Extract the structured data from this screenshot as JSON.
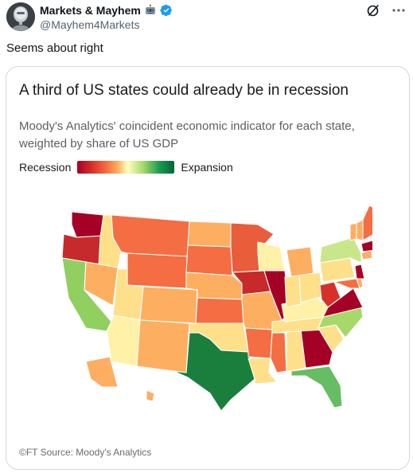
{
  "tweet": {
    "display_name": "Markets & Mayhem",
    "handle": "@Mayhem4Markets",
    "text": "Seems about right"
  },
  "card": {
    "title": "A third of US states could already be in recession",
    "subtitle": "Moody's Analytics' coincident economic indicator for each state, weighted by share of US GDP",
    "legend_low": "Recession",
    "legend_high": "Expansion",
    "source": "©FT Source: Moody's Analytics"
  },
  "icons": {
    "avatar": "avatar-robot",
    "badge_1": "robot-badge-icon",
    "badge_2": "verified-check-icon",
    "action_1": "grok-icon",
    "action_2": "more-options-icon"
  },
  "colors": {
    "verified_blue": "#1d9bf0",
    "scale_low": "#a50026",
    "scale_mid": "#ffffbf",
    "scale_high": "#006837"
  }
}
